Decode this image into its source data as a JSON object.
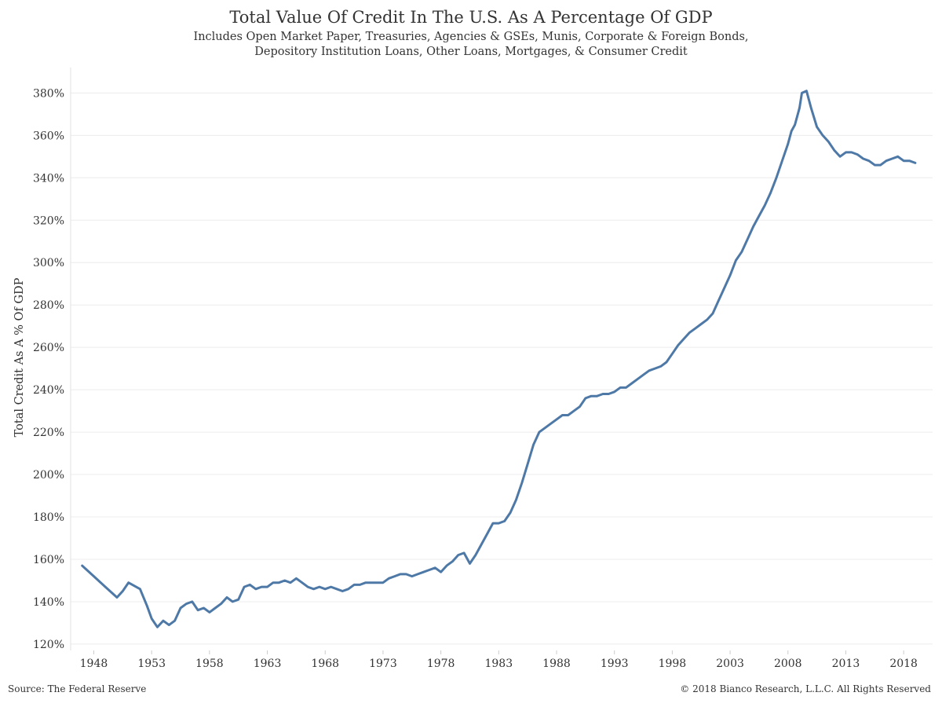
{
  "chart_data": {
    "type": "line",
    "title": "Total Value Of Credit In The U.S. As A Percentage Of GDP",
    "subtitle_lines": [
      "Includes Open Market Paper, Treasuries, Agencies & GSEs, Munis, Corporate & Foreign Bonds,",
      "Depository Institution Loans, Other Loans, Mortgages, & Consumer Credit"
    ],
    "xlabel": "",
    "ylabel": "Total Credit As A % Of GDP",
    "x_tick_labels": [
      "1948",
      "1953",
      "1958",
      "1963",
      "1968",
      "1973",
      "1978",
      "1983",
      "1988",
      "1993",
      "1998",
      "2003",
      "2008",
      "2013",
      "2018"
    ],
    "y_tick_labels": [
      "120%",
      "140%",
      "160%",
      "180%",
      "200%",
      "220%",
      "240%",
      "260%",
      "280%",
      "300%",
      "320%",
      "340%",
      "360%",
      "380%"
    ],
    "xlim": [
      1946.0,
      2020.5
    ],
    "ylim": [
      117,
      392
    ],
    "grid": "horizontal",
    "line_color": "#4E79A7",
    "series": [
      {
        "x": [
          1947.0,
          1948.0,
          1949.0,
          1950.0,
          1950.5,
          1951.0,
          1952.0,
          1952.6,
          1953.0,
          1953.5,
          1954.0,
          1954.5,
          1955.0,
          1955.5,
          1956.0,
          1956.5,
          1957.0,
          1957.5,
          1958.0,
          1958.5,
          1959.0,
          1959.5,
          1960.0,
          1960.5,
          1961.0,
          1961.5,
          1962.0,
          1962.5,
          1963.0,
          1963.5,
          1964.0,
          1964.5,
          1965.0,
          1965.5,
          1966.0,
          1966.5,
          1967.0,
          1967.5,
          1968.0,
          1968.5,
          1969.0,
          1969.5,
          1970.0,
          1970.5,
          1971.0,
          1971.5,
          1972.0,
          1972.5,
          1973.0,
          1973.5,
          1974.0,
          1974.5,
          1975.0,
          1975.5,
          1976.0,
          1976.5,
          1977.0,
          1977.5,
          1978.0,
          1978.5,
          1979.0,
          1979.5,
          1980.0,
          1980.5,
          1981.0,
          1981.5,
          1982.0,
          1982.5,
          1983.0,
          1983.5,
          1984.0,
          1984.5,
          1985.0,
          1985.5,
          1986.0,
          1986.5,
          1987.0,
          1987.5,
          1988.0,
          1988.5,
          1989.0,
          1989.5,
          1990.0,
          1990.5,
          1991.0,
          1991.5,
          1992.0,
          1992.5,
          1993.0,
          1993.5,
          1994.0,
          1994.5,
          1995.0,
          1995.5,
          1996.0,
          1996.5,
          1997.0,
          1997.5,
          1998.0,
          1998.5,
          1999.0,
          1999.5,
          2000.0,
          2000.5,
          2001.0,
          2001.5,
          2002.0,
          2002.5,
          2003.0,
          2003.5,
          2004.0,
          2004.5,
          2005.0,
          2005.5,
          2006.0,
          2006.5,
          2007.0,
          2007.5,
          2008.0,
          2008.3,
          2008.6,
          2009.0,
          2009.2,
          2009.6,
          2010.0,
          2010.5,
          2011.0,
          2011.5,
          2012.0,
          2012.5,
          2013.0,
          2013.5,
          2014.0,
          2014.5,
          2015.0,
          2015.5,
          2016.0,
          2016.5,
          2017.0,
          2017.5,
          2018.0,
          2018.5,
          2019.0
        ],
        "y": [
          157,
          152,
          147,
          142,
          145,
          149,
          146,
          138,
          132,
          128,
          131,
          129,
          131,
          137,
          139,
          140,
          136,
          137,
          135,
          137,
          139,
          142,
          140,
          141,
          147,
          148,
          146,
          147,
          147,
          149,
          149,
          150,
          149,
          151,
          149,
          147,
          146,
          147,
          146,
          147,
          146,
          145,
          146,
          148,
          148,
          149,
          149,
          149,
          149,
          151,
          152,
          153,
          153,
          152,
          153,
          154,
          155,
          156,
          154,
          157,
          159,
          162,
          163,
          158,
          162,
          167,
          172,
          177,
          177,
          178,
          182,
          188,
          196,
          205,
          214,
          220,
          222,
          224,
          226,
          228,
          228,
          230,
          232,
          236,
          237,
          237,
          238,
          238,
          239,
          241,
          241,
          243,
          245,
          247,
          249,
          250,
          251,
          253,
          257,
          261,
          264,
          267,
          269,
          271,
          273,
          276,
          282,
          288,
          294,
          301,
          305,
          311,
          317,
          322,
          327,
          333,
          340,
          348,
          356,
          362,
          365,
          373,
          380,
          381,
          373,
          364,
          360,
          357,
          353,
          350,
          352,
          352,
          351,
          349,
          348,
          346,
          346,
          348,
          349,
          350,
          348,
          348,
          347
        ]
      }
    ]
  },
  "footer": {
    "source": "Source: The Federal Reserve",
    "copyright": "© 2018 Bianco Research, L.L.C. All Rights Reserved"
  }
}
